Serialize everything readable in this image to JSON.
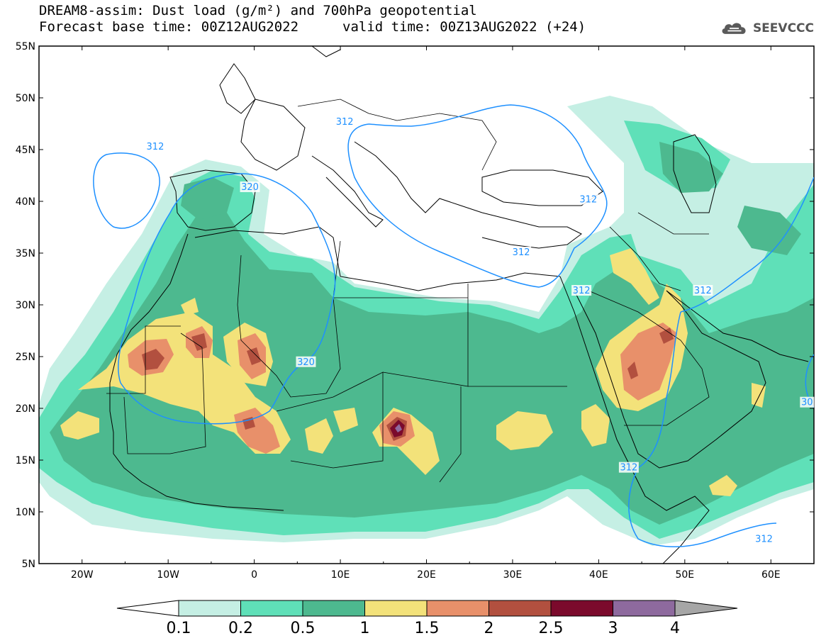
{
  "title": {
    "line1": "DREAM8-assim: Dust load (g/m²) and 700hPa geopotential",
    "base_time": "Forecast base time: 00Z12AUG2022",
    "valid_time": "valid time: 00Z13AUG2022 (+24)"
  },
  "logo": {
    "icon": "cloud-icon",
    "text": "SEEVCCC"
  },
  "map": {
    "region": "North Africa, Europe and Middle East",
    "lon_range": [
      -25,
      65
    ],
    "lat_range": [
      5,
      55
    ],
    "lat_ticks": [
      "55N",
      "50N",
      "45N",
      "40N",
      "35N",
      "30N",
      "25N",
      "20N",
      "15N",
      "10N",
      "5N"
    ],
    "lon_ticks": [
      "20W",
      "10W",
      "0",
      "10E",
      "20E",
      "30E",
      "40E",
      "50E",
      "60E"
    ],
    "contour_labels": [
      {
        "text": "312",
        "lon": -11.5,
        "lat": 45.2
      },
      {
        "text": "320",
        "lon": -0.5,
        "lat": 41.3
      },
      {
        "text": "312",
        "lon": 10.5,
        "lat": 47.6
      },
      {
        "text": "312",
        "lon": 38.8,
        "lat": 40.1
      },
      {
        "text": "312",
        "lon": 31,
        "lat": 35
      },
      {
        "text": "312",
        "lon": 38,
        "lat": 31.3
      },
      {
        "text": "312",
        "lon": 52.1,
        "lat": 31.3
      },
      {
        "text": "320",
        "lon": 6,
        "lat": 24.4
      },
      {
        "text": "312",
        "lon": 43.5,
        "lat": 14.2
      },
      {
        "text": "312",
        "lon": 59.2,
        "lat": 7.3
      },
      {
        "text": "30",
        "lon": 64.2,
        "lat": 20.5
      }
    ]
  },
  "colorbar": {
    "unit": "g/m²",
    "levels": [
      "0.1",
      "0.2",
      "0.5",
      "1",
      "1.5",
      "2",
      "2.5",
      "3",
      "4"
    ],
    "colors": [
      "#c5efe4",
      "#5fe0b8",
      "#4db98f",
      "#f3e27a",
      "#e8906a",
      "#b2503f",
      "#7b0a2c",
      "#8e6a9e"
    ],
    "under_color": "#ffffff",
    "over_color": "#a6a6a6"
  }
}
